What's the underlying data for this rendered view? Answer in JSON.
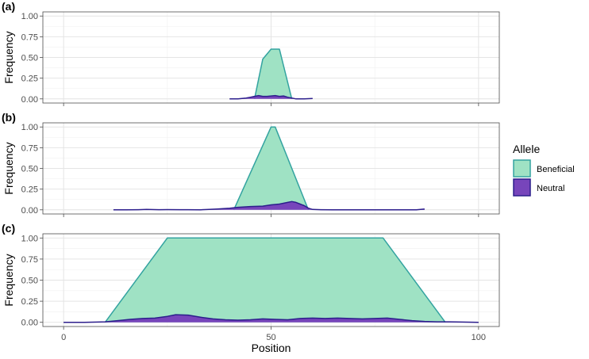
{
  "chart_data": {
    "type": "area",
    "xlabel": "Position",
    "ylabel": "Frequency",
    "xlim": [
      -5,
      105
    ],
    "ylim": [
      -0.05,
      1.05
    ],
    "x_ticks": [
      0,
      50,
      100
    ],
    "x_tick_labels": [
      "0",
      "50",
      "100"
    ],
    "y_ticks": [
      0,
      0.25,
      0.5,
      0.75,
      1.0
    ],
    "y_tick_labels": [
      "0.00",
      "0.25",
      "0.50",
      "0.75",
      "1.00"
    ],
    "grid": true,
    "legend": {
      "title": "Allele",
      "position": "right",
      "entries": [
        {
          "name": "Beneficial",
          "fill": "#9fe2c4",
          "stroke": "#33a3a0"
        },
        {
          "name": "Neutral",
          "fill": "#7745bb",
          "stroke": "#2c1e8c"
        }
      ]
    },
    "panels": [
      {
        "label": "(a)",
        "series": [
          {
            "name": "Beneficial",
            "x": [
              46,
              48,
              50,
              52,
              55
            ],
            "y": [
              0,
              0.48,
              0.6,
              0.6,
              0
            ]
          },
          {
            "name": "Neutral",
            "x": [
              40,
              42,
              44,
              45,
              46,
              47,
              48,
              49,
              50,
              51,
              52,
              53,
              54,
              55,
              56,
              58,
              60
            ],
            "y": [
              0,
              0,
              0.01,
              0.02,
              0.03,
              0.04,
              0.03,
              0.03,
              0.035,
              0.04,
              0.03,
              0.035,
              0.02,
              0.01,
              0,
              0,
              0.005
            ]
          }
        ]
      },
      {
        "label": "(b)",
        "series": [
          {
            "name": "Beneficial",
            "x": [
              41,
              50,
              51,
              59
            ],
            "y": [
              0,
              1.0,
              1.0,
              0
            ]
          },
          {
            "name": "Neutral",
            "x": [
              12,
              15,
              18,
              20,
              23,
              25,
              28,
              30,
              33,
              35,
              37,
              40,
              42,
              45,
              48,
              50,
              52,
              54,
              55,
              56,
              57,
              58,
              59,
              60,
              62,
              65,
              70,
              75,
              80,
              85,
              87
            ],
            "y": [
              0,
              0,
              0.002,
              0.005,
              0.002,
              0.003,
              0.002,
              0.002,
              0.001,
              0.005,
              0.01,
              0.02,
              0.03,
              0.04,
              0.045,
              0.06,
              0.07,
              0.09,
              0.1,
              0.09,
              0.07,
              0.05,
              0.02,
              0.005,
              0.002,
              0,
              0,
              0,
              0,
              0,
              0.01
            ]
          }
        ]
      },
      {
        "label": "(c)",
        "series": [
          {
            "name": "Beneficial",
            "x": [
              10,
              25,
              77,
              92
            ],
            "y": [
              0,
              1.0,
              1.0,
              0
            ]
          },
          {
            "name": "Neutral",
            "x": [
              0,
              5,
              10,
              13,
              16,
              19,
              22,
              25,
              27,
              30,
              33,
              36,
              39,
              42,
              45,
              48,
              51,
              54,
              57,
              60,
              63,
              66,
              69,
              72,
              75,
              78,
              81,
              84,
              87,
              90,
              93,
              96,
              100
            ],
            "y": [
              0,
              0,
              0.005,
              0.02,
              0.035,
              0.045,
              0.05,
              0.07,
              0.09,
              0.085,
              0.06,
              0.04,
              0.03,
              0.025,
              0.03,
              0.04,
              0.035,
              0.03,
              0.045,
              0.05,
              0.045,
              0.05,
              0.045,
              0.04,
              0.045,
              0.05,
              0.035,
              0.02,
              0.01,
              0.005,
              0.005,
              0.003,
              0
            ]
          }
        ]
      }
    ]
  }
}
